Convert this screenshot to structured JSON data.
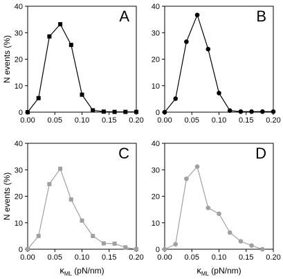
{
  "figure": {
    "ylabel": "N events (%)",
    "xlabel_symbol": "κ",
    "xlabel_subscript": "ML",
    "xlabel_units": " (pN/nm)"
  },
  "chart_data": [
    {
      "type": "line",
      "panel": "A",
      "marker": "square",
      "color": "#000000",
      "x": [
        0.0,
        0.02,
        0.04,
        0.06,
        0.08,
        0.1,
        0.12,
        0.14,
        0.16,
        0.18,
        0.2
      ],
      "y": [
        0,
        5.3,
        28.6,
        33.2,
        25.4,
        6.6,
        0.7,
        0.2,
        0.1,
        0.1,
        0.1
      ],
      "xlim": [
        0,
        0.2
      ],
      "ylim": [
        0,
        40
      ],
      "xticks": [
        "0.00",
        "0.05",
        "0.10",
        "0.15",
        "0.20"
      ],
      "yticks": [
        "0",
        "10",
        "20",
        "30",
        "40"
      ],
      "show_xlabel": false,
      "show_ylabel": true
    },
    {
      "type": "line",
      "panel": "B",
      "marker": "circle",
      "color": "#000000",
      "x": [
        0.0,
        0.02,
        0.04,
        0.06,
        0.08,
        0.1,
        0.12,
        0.14,
        0.16,
        0.18,
        0.2
      ],
      "y": [
        0,
        5.1,
        26.6,
        36.7,
        23.8,
        7.2,
        0.6,
        0.2,
        0.2,
        0.2,
        0.2
      ],
      "xlim": [
        0,
        0.2
      ],
      "ylim": [
        0,
        40
      ],
      "xticks": [
        "0.00",
        "0.05",
        "0.10",
        "0.15",
        "0.20"
      ],
      "yticks": [
        "0",
        "10",
        "20",
        "30",
        "40"
      ],
      "show_xlabel": false,
      "show_ylabel": false
    },
    {
      "type": "line",
      "panel": "C",
      "marker": "square",
      "color": "#a0a0a0",
      "x": [
        0.0,
        0.02,
        0.04,
        0.06,
        0.08,
        0.1,
        0.12,
        0.14,
        0.16,
        0.18,
        0.2
      ],
      "y": [
        0,
        5.0,
        24.6,
        30.4,
        18.8,
        10.8,
        5.0,
        2.2,
        2.1,
        0.7,
        0
      ],
      "xlim": [
        0,
        0.2
      ],
      "ylim": [
        0,
        40
      ],
      "xticks": [
        "0.00",
        "0.05",
        "0.10",
        "0.15",
        "0.20"
      ],
      "yticks": [
        "0",
        "10",
        "20",
        "30",
        "40"
      ],
      "show_xlabel": true,
      "show_ylabel": true
    },
    {
      "type": "line",
      "panel": "D",
      "marker": "circle",
      "color": "#a0a0a0",
      "x": [
        0.0,
        0.02,
        0.04,
        0.06,
        0.08,
        0.1,
        0.12,
        0.14,
        0.16,
        0.18
      ],
      "y": [
        0,
        1.9,
        26.6,
        31.2,
        15.6,
        13.4,
        6.3,
        3.0,
        1.4,
        0
      ],
      "xlim": [
        0,
        0.2
      ],
      "ylim": [
        0,
        40
      ],
      "xticks": [
        "0.00",
        "0.05",
        "0.10",
        "0.15",
        "0.20"
      ],
      "yticks": [
        "0",
        "10",
        "20",
        "30",
        "40"
      ],
      "show_xlabel": true,
      "show_ylabel": false
    }
  ]
}
